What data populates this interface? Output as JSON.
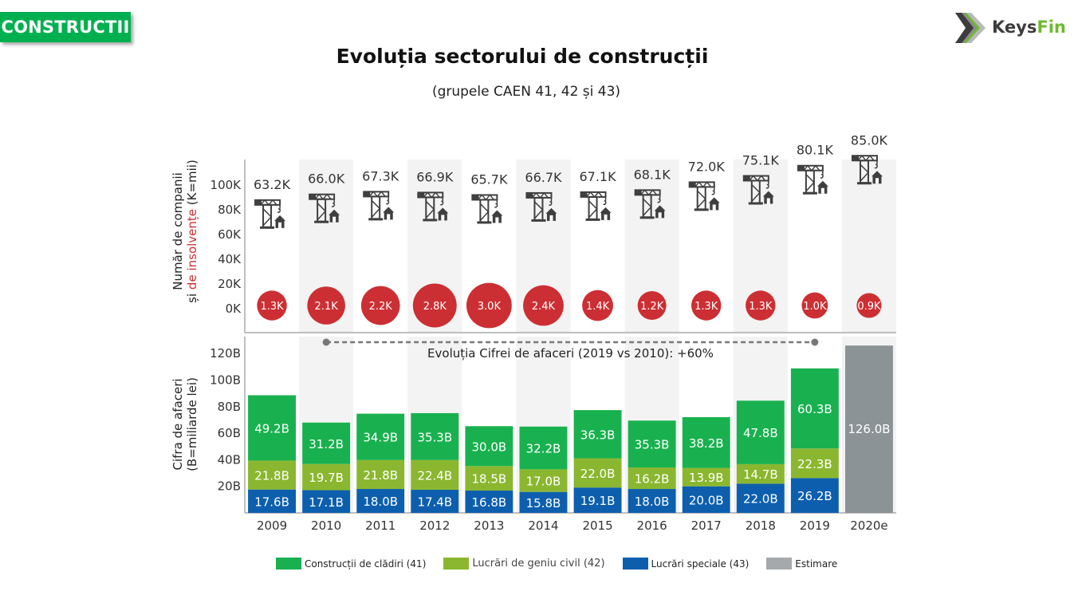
{
  "header": {
    "section_label": "CONSTRUCTII",
    "logo": {
      "icon": "keysfin-chevron-logo-icon",
      "text_main": "Keys",
      "text_accent": "Fin"
    },
    "title": "Evoluția sectorului de construcții",
    "subtitle": "(grupele CAEN 41, 42 și 43)"
  },
  "colors": {
    "badge_green": "#00b050",
    "cladiri": "#19b14f",
    "geniu_civil": "#8ab72f",
    "speciale": "#0d5fae",
    "estimare": "#8c9396",
    "insolvente": "#cc2f33",
    "crane_icon": "#3f3f3f",
    "band": "#f3f3f3"
  },
  "chart_data": [
    {
      "type": "table",
      "title": "Număr de companii și de insolvențe",
      "ylabel_line1": "Număr de companii",
      "ylabel_line2_prefix": "și ",
      "ylabel_line2_highlight": "de insolvențe",
      "ylabel_line2_suffix": " (K=mii)",
      "yticks": [
        "0K",
        "20K",
        "40K",
        "60K",
        "80K",
        "100K"
      ],
      "ylim": [
        0,
        100000
      ],
      "categories": [
        "2009",
        "2010",
        "2011",
        "2012",
        "2013",
        "2014",
        "2015",
        "2016",
        "2017",
        "2018",
        "2019",
        "2020e"
      ],
      "series": [
        {
          "name": "Număr de companii",
          "icon": "crane-house-icon",
          "values": [
            63.2,
            66.0,
            67.3,
            66.9,
            65.7,
            66.7,
            67.1,
            68.1,
            72.0,
            75.1,
            80.1,
            85.0
          ],
          "labels": [
            "63.2K",
            "66.0K",
            "67.3K",
            "66.9K",
            "65.7K",
            "66.7K",
            "67.1K",
            "68.1K",
            "72.0K",
            "75.1K",
            "80.1K",
            "85.0K"
          ],
          "unit": "thousands"
        },
        {
          "name": "Insolvențe",
          "marker": "bubble",
          "values": [
            1.3,
            2.1,
            2.2,
            2.8,
            3.0,
            2.4,
            1.4,
            1.2,
            1.3,
            1.3,
            1.0,
            0.9
          ],
          "labels": [
            "1.3K",
            "2.1K",
            "2.2K",
            "2.8K",
            "3.0K",
            "2.4K",
            "1.4K",
            "1.2K",
            "1.3K",
            "1.3K",
            "1.0K",
            "0.9K"
          ],
          "unit": "thousands"
        }
      ]
    },
    {
      "type": "bar",
      "stacked": true,
      "title": "Cifra de afaceri",
      "ylabel_line1": "Cifra de afaceri",
      "ylabel_line2": "(B=miliarde lei)",
      "yticks": [
        "20B",
        "40B",
        "60B",
        "80B",
        "100B",
        "120B"
      ],
      "ylim": [
        0,
        130
      ],
      "categories": [
        "2009",
        "2010",
        "2011",
        "2012",
        "2013",
        "2014",
        "2015",
        "2016",
        "2017",
        "2018",
        "2019",
        "2020e"
      ],
      "series": [
        {
          "name": "Lucrări speciale (43)",
          "key": "speciale",
          "values": [
            17.6,
            17.1,
            18.0,
            17.4,
            16.8,
            15.8,
            19.1,
            18.0,
            20.0,
            22.0,
            26.2,
            null
          ]
        },
        {
          "name": "Lucrări de geniu civil (42)",
          "key": "geniu_civil",
          "values": [
            21.8,
            19.7,
            21.8,
            22.4,
            18.5,
            17.0,
            22.0,
            16.2,
            13.9,
            14.7,
            22.3,
            null
          ]
        },
        {
          "name": "Construcții de clădiri (41)",
          "key": "cladiri",
          "values": [
            49.2,
            31.2,
            34.9,
            35.3,
            30.0,
            32.2,
            36.3,
            35.3,
            38.2,
            47.8,
            60.3,
            null
          ]
        },
        {
          "name": "Estimare",
          "key": "estimare",
          "values": [
            null,
            null,
            null,
            null,
            null,
            null,
            null,
            null,
            null,
            null,
            null,
            126.0
          ]
        }
      ],
      "annotation": {
        "text": "Evoluția Cifrei de afaceri (2019 vs 2010): +60%",
        "from": "2010",
        "to": "2019"
      },
      "legend_position": "bottom",
      "legend": [
        {
          "label": "Construcții de clădiri (41)",
          "key": "cladiri"
        },
        {
          "label": "Lucrări de geniu civil (42)",
          "key": "geniu_civil"
        },
        {
          "label": "Lucrări speciale (43)",
          "key": "speciale"
        },
        {
          "label": "Estimare",
          "key": "estimare"
        }
      ]
    }
  ]
}
